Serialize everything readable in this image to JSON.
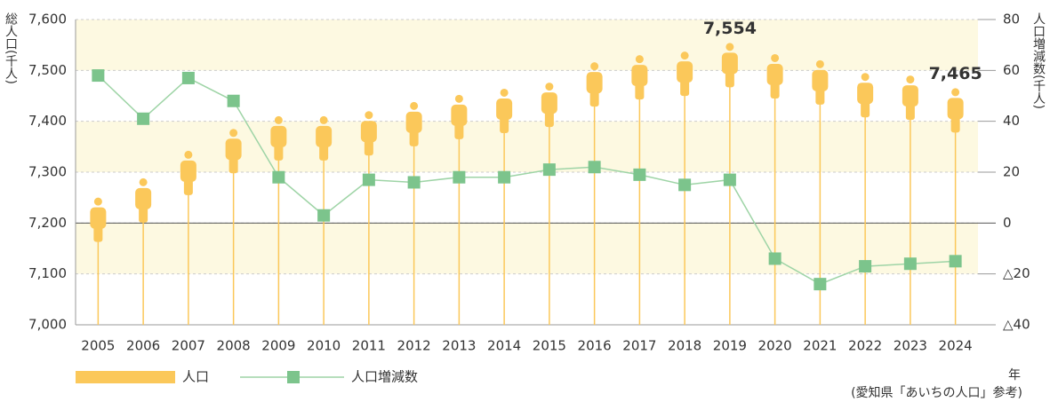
{
  "chart_data": {
    "type": "line",
    "y_label": "総人口(千人)",
    "y2_label": "人口増減数(千人)",
    "x_label": "年",
    "source": "(愛知県「あいちの人口」参考)",
    "categories": [
      "2005",
      "2006",
      "2007",
      "2008",
      "2009",
      "2010",
      "2011",
      "2012",
      "2013",
      "2014",
      "2015",
      "2016",
      "2017",
      "2018",
      "2019",
      "2020",
      "2021",
      "2022",
      "2023",
      "2024"
    ],
    "series": [
      {
        "name": "人口",
        "color": "#fbc85a",
        "style": "icon",
        "values": [
          7250,
          7288,
          7342,
          7385,
          7410,
          7410,
          7420,
          7438,
          7452,
          7464,
          7476,
          7516,
          7530,
          7537,
          7554,
          7532,
          7520,
          7495,
          7490,
          7465
        ],
        "value_labels": [
          null,
          null,
          null,
          null,
          null,
          null,
          null,
          null,
          null,
          null,
          null,
          null,
          null,
          null,
          "7,554",
          null,
          null,
          null,
          null,
          "7,465"
        ]
      },
      {
        "name": "人口増減数",
        "color": "#7cc48c",
        "axis": "y2",
        "style": "line",
        "values": [
          58,
          41,
          57,
          48,
          18,
          3,
          17,
          16,
          18,
          18,
          21,
          22,
          19,
          15,
          17,
          -14,
          -24,
          -17,
          -16,
          -15
        ]
      }
    ],
    "ylim": [
      7000,
      7600
    ],
    "yticks": [
      {
        "value": 7000,
        "label": "7,000"
      },
      {
        "value": 7100,
        "label": "7,100"
      },
      {
        "value": 7200,
        "label": "7,200"
      },
      {
        "value": 7300,
        "label": "7,300"
      },
      {
        "value": 7400,
        "label": "7,400"
      },
      {
        "value": 7500,
        "label": "7,500"
      },
      {
        "value": 7600,
        "label": "7,600"
      }
    ],
    "y2lim": [
      -40,
      80
    ],
    "y2ticks": [
      {
        "value": -40,
        "label": "△40"
      },
      {
        "value": -20,
        "label": "△20"
      },
      0,
      20,
      40,
      60,
      80
    ],
    "grid": true
  }
}
